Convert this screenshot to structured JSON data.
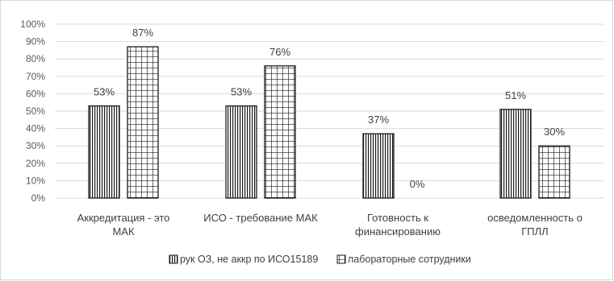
{
  "chart_data": {
    "type": "bar",
    "categories": [
      [
        "Аккредитация - это",
        "МАК"
      ],
      [
        "ИСО - требование МАК"
      ],
      [
        "Готовность к",
        "финансированию"
      ],
      [
        "осведомленность о",
        "ГПЛЛ"
      ]
    ],
    "series": [
      {
        "name": "рук ОЗ, не аккр по ИСО15189",
        "values": [
          53,
          53,
          37,
          51
        ],
        "pattern": "vertical-stripes"
      },
      {
        "name": "лабораторные сотрудники",
        "values": [
          87,
          76,
          0,
          30
        ],
        "pattern": "grid"
      }
    ],
    "data_labels": [
      [
        "53%",
        "53%",
        "37%",
        "51%"
      ],
      [
        "87%",
        "76%",
        "0%",
        "30%"
      ]
    ],
    "y_ticks": [
      "0%",
      "10%",
      "20%",
      "30%",
      "40%",
      "50%",
      "60%",
      "70%",
      "80%",
      "90%",
      "100%"
    ],
    "ylim": [
      0,
      100
    ],
    "grid": true,
    "legend_position": "bottom",
    "colors": {
      "axis": "#d9d9d9",
      "grid": "#d9d9d9",
      "bar_stroke": "#1a1a1a",
      "bar_fill": "#ffffff"
    }
  }
}
